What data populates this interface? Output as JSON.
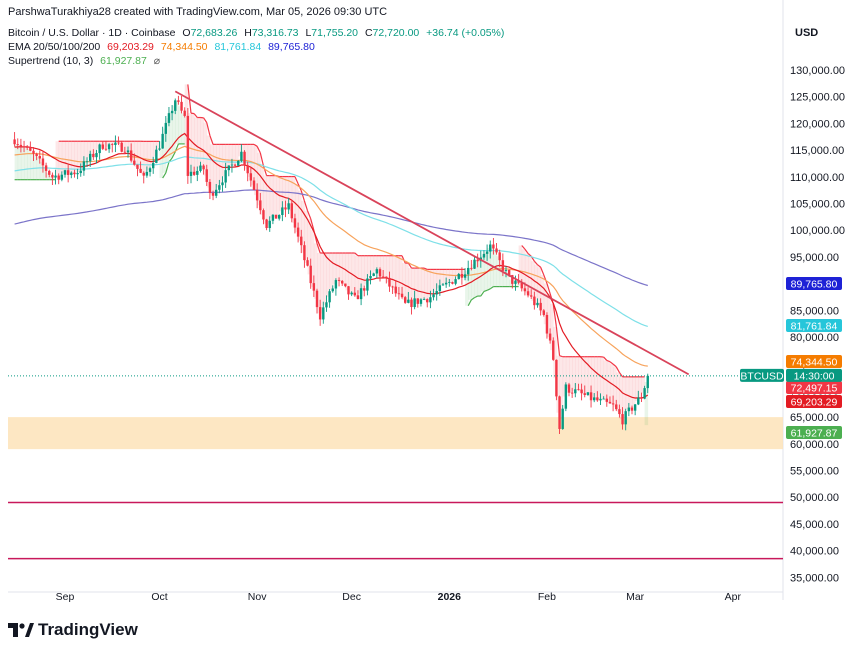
{
  "header": {
    "credit": "ParshwaTurakhiya28 created with TradingView.com, Mar 05, 2026 09:30 UTC"
  },
  "legend": {
    "symbol": "Bitcoin / U.S. Dollar · 1D · Coinbase",
    "o_label": "O",
    "o": "72,683.26",
    "h_label": "H",
    "h": "73,316.73",
    "l_label": "L",
    "l": "71,755.20",
    "c_label": "C",
    "c": "72,720.00",
    "change": "+36.74 (+0.05%)",
    "ema_label": "EMA 20/50/100/200",
    "ema20": "69,203.29",
    "ema50": "74,344.50",
    "ema100": "81,761.84",
    "ema200": "89,765.80",
    "supertrend_label": "Supertrend (10, 3)",
    "supertrend": "61,927.87",
    "supertrend_icon": "hide-icon"
  },
  "price_axis": {
    "currency": "USD",
    "ticks": [
      "130,000.00",
      "125,000.00",
      "120,000.00",
      "115,000.00",
      "110,000.00",
      "105,000.00",
      "100,000.00",
      "95,000.00",
      "90,000.00",
      "85,000.00",
      "80,000.00",
      "75,000.00",
      "70,000.00",
      "65,000.00",
      "60,000.00",
      "55,000.00",
      "50,000.00",
      "45,000.00",
      "40,000.00",
      "35,000.00"
    ]
  },
  "time_axis": {
    "labels": [
      "Sep",
      "Oct",
      "Nov",
      "Dec",
      "2026",
      "Feb",
      "Mar",
      "Apr"
    ]
  },
  "price_tags": [
    {
      "text": "89,765.80",
      "color": "#1e22d6",
      "price": 89765.8
    },
    {
      "text": "81,761.84",
      "color": "#26c6da",
      "price": 81761.84
    },
    {
      "text": "74,344.50",
      "color": "#f57c00",
      "price": 74344.5
    },
    {
      "text": "72,497.15",
      "color": "#f23645",
      "price": 72497.15
    },
    {
      "text": "69,203.29",
      "color": "#e31b23",
      "price": 69203.29
    },
    {
      "text": "61,927.87",
      "color": "#4caf50",
      "price": 61927.87
    }
  ],
  "last_price": {
    "symbol": "BTCUSD",
    "countdown": "14:30:00",
    "price": 72720.0,
    "color": "#089981"
  },
  "branding": {
    "name": "TradingView"
  },
  "colors": {
    "up": "#089981",
    "down": "#f23645",
    "ema20": "#e31b23",
    "ema50": "#f7a35c",
    "ema100": "#7ee0e8",
    "ema200": "#7b74c9",
    "supertrend_down": "#f23645",
    "supertrend_up": "#4caf50",
    "zone": "#fde3b8",
    "trendline": "#d9435a",
    "support": "#c8185b"
  },
  "chart_data": {
    "type": "candlestick",
    "y_range": [
      34000,
      131500
    ],
    "x_labels": [
      "Sep",
      "Oct",
      "Nov",
      "Dec",
      "2026",
      "Feb",
      "Mar",
      "Apr"
    ],
    "last_close": 72720.0,
    "demand_zone": [
      59000,
      65000
    ],
    "horizontal_levels": [
      49000,
      38500
    ],
    "trendline": {
      "start": {
        "date": "2025-10-06",
        "price": 126000
      },
      "end": {
        "date": "2026-03-18",
        "price": 73000
      }
    }
  }
}
